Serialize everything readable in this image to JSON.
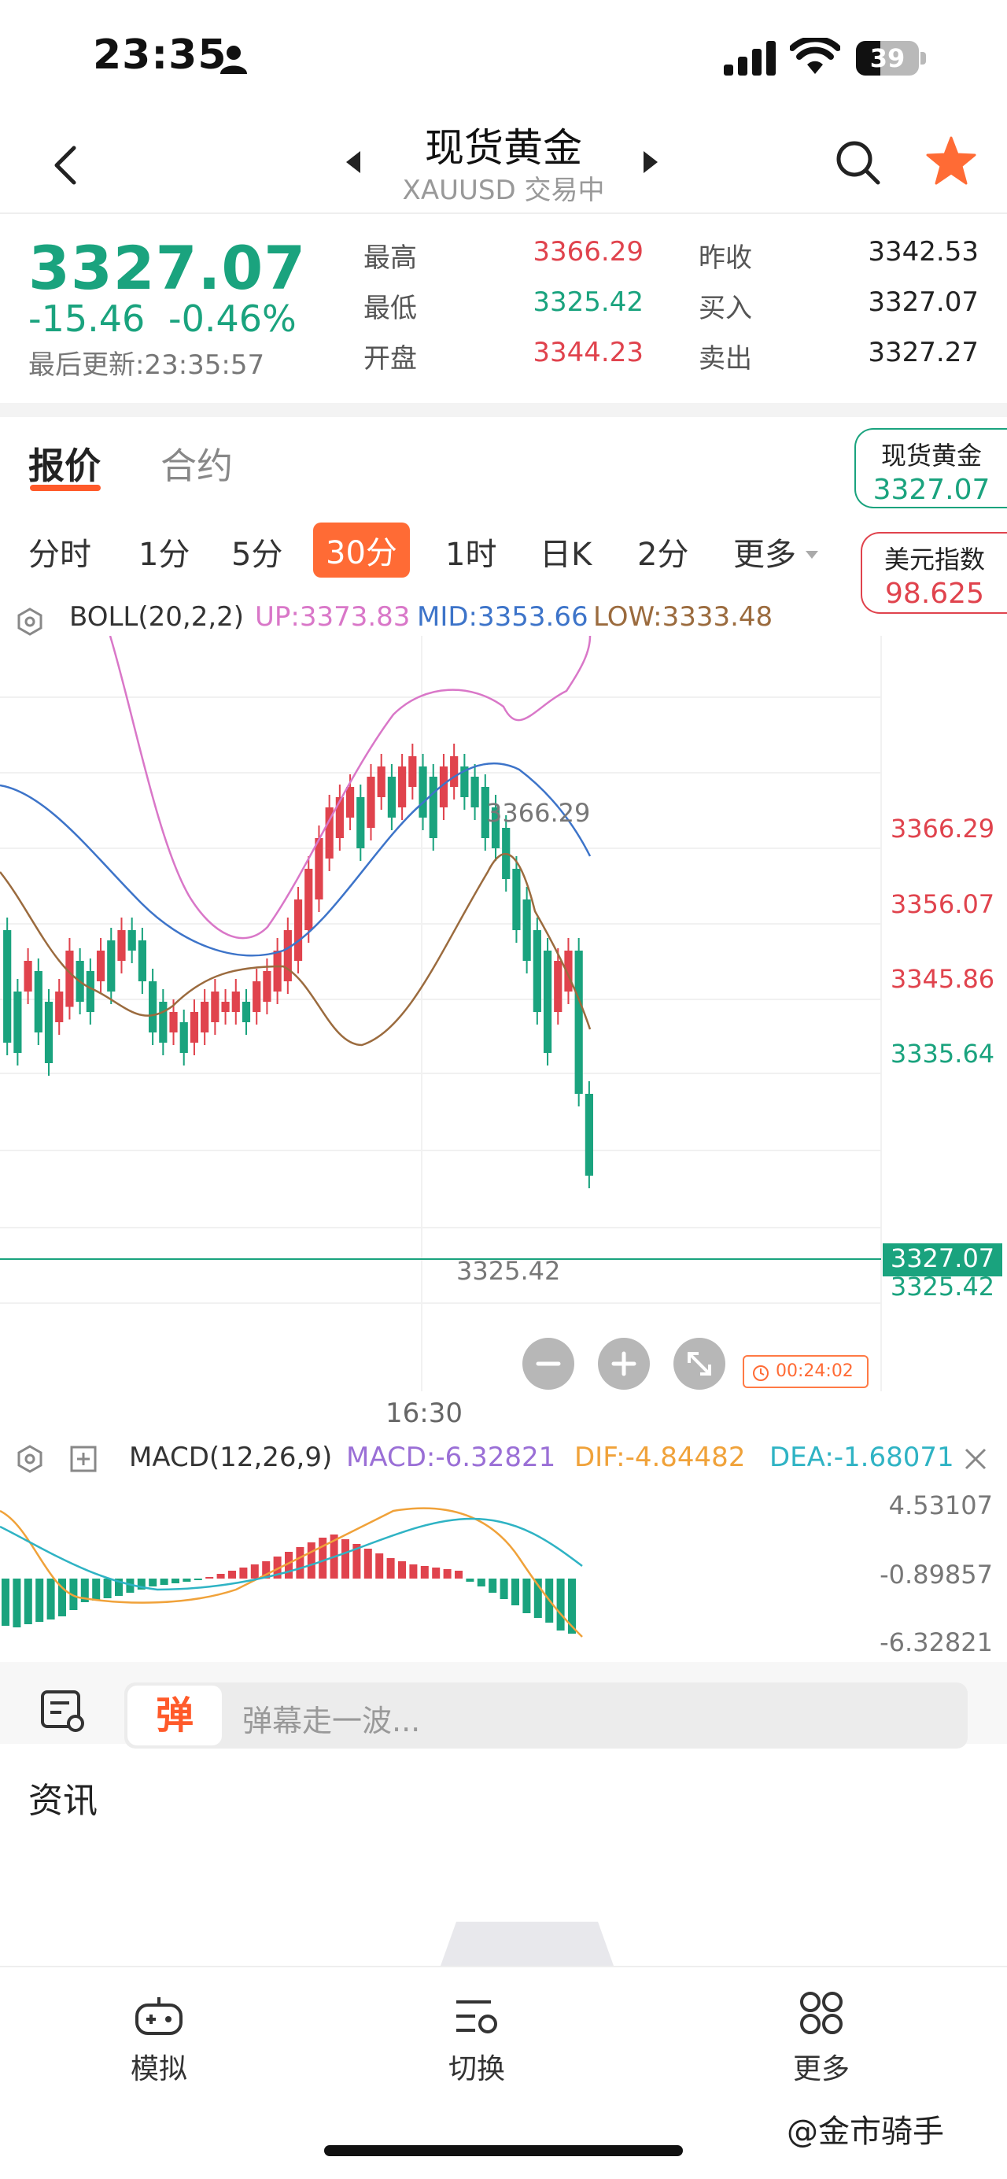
{
  "status_bar": {
    "time": "23:35",
    "battery": "39",
    "battery_level": 0.39
  },
  "header": {
    "title": "现货黄金",
    "subtitle": "XAUUSD 交易中"
  },
  "quote": {
    "price": "3327.07",
    "change": "-15.46",
    "change_pct": "-0.46%",
    "last_update": "最后更新:23:35:57",
    "stats": [
      {
        "label": "最高",
        "value": "3366.29",
        "color": "red"
      },
      {
        "label": "昨收",
        "value": "3342.53",
        "color": "dark"
      },
      {
        "label": "最低",
        "value": "3325.42",
        "color": "green"
      },
      {
        "label": "买入",
        "value": "3327.07",
        "color": "dark"
      },
      {
        "label": "开盘",
        "value": "3344.23",
        "color": "red"
      },
      {
        "label": "卖出",
        "value": "3327.27",
        "color": "dark"
      }
    ]
  },
  "tabs": {
    "quote": "报价",
    "contract": "合约"
  },
  "side_cards": [
    {
      "name": "现货黄金",
      "value": "3327.07",
      "color": "#1aa37e"
    },
    {
      "name": "美元指数",
      "value": "98.625",
      "color": "#e0434d"
    }
  ],
  "timeframes": [
    "分时",
    "1分",
    "5分",
    "30分",
    "1时",
    "日K",
    "2分",
    "更多"
  ],
  "active_timeframe": "30分",
  "boll": {
    "name": "BOLL(20,2,2)",
    "up": "UP:3373.83",
    "mid": "MID:3353.66",
    "low": "LOW:3333.48"
  },
  "chart": {
    "y_labels": [
      {
        "text": "3366.29",
        "color": "#e0434d"
      },
      {
        "text": "3356.07",
        "color": "#e0434d"
      },
      {
        "text": "3345.86",
        "color": "#e0434d"
      },
      {
        "text": "3335.64",
        "color": "#1aa37e"
      },
      {
        "text": "3325.42",
        "color": "#1aa37e"
      }
    ],
    "current_price_tag": "3327.07",
    "high_marker": "3366.29",
    "low_marker": "3325.42",
    "time_label": "16:30",
    "countdown": "00:24:02"
  },
  "macd": {
    "name": "MACD(12,26,9)",
    "macd": "MACD:-6.32821",
    "dif": "DIF:-4.84482",
    "dea": "DEA:-1.68071",
    "y_labels": [
      "4.53107",
      "-0.89857",
      "-6.32821"
    ]
  },
  "comment": {
    "badge": "弹",
    "placeholder": "弹幕走一波..."
  },
  "news": {
    "title": "资讯"
  },
  "bottom_nav": [
    {
      "label": "模拟",
      "icon": "gamepad-icon"
    },
    {
      "label": "切换",
      "icon": "switch-list-icon"
    },
    {
      "label": "更多",
      "icon": "grid-more-icon"
    }
  ],
  "watermark": "@金市骑手",
  "colors": {
    "up": "#e0434d",
    "down": "#1aa37e",
    "accent": "#ff6b35"
  }
}
